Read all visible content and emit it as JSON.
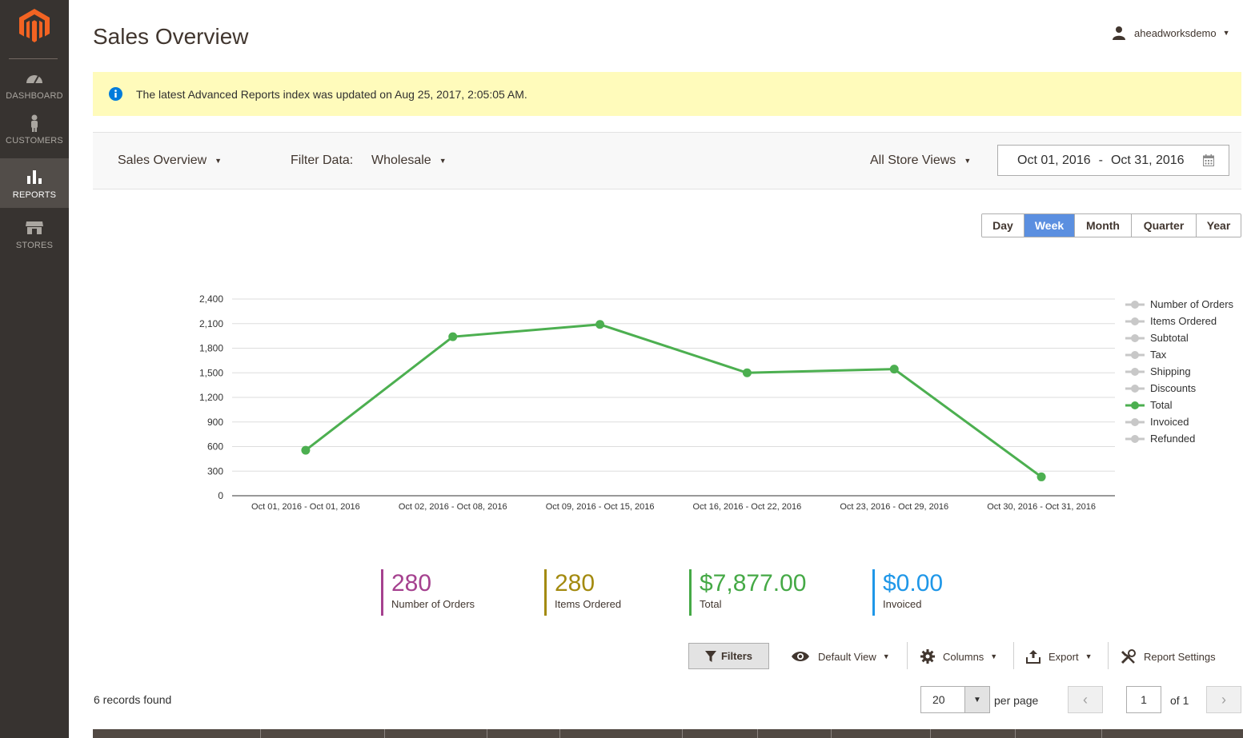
{
  "sidebar": {
    "logo": "magento-logo",
    "items": [
      {
        "label": "DASHBOARD",
        "icon": "dashboard-icon",
        "active": false
      },
      {
        "label": "CUSTOMERS",
        "icon": "customers-icon",
        "active": false
      },
      {
        "label": "REPORTS",
        "icon": "reports-icon",
        "active": true
      },
      {
        "label": "STORES",
        "icon": "stores-icon",
        "active": false
      }
    ]
  },
  "header": {
    "title": "Sales Overview",
    "user": "aheadworksdemo"
  },
  "notice": {
    "text": "The latest Advanced Reports index was updated on Aug 25, 2017, 2:05:05 AM."
  },
  "toolbar": {
    "report": "Sales Overview",
    "filter_label": "Filter Data:",
    "filter_value": "Wholesale",
    "store_view": "All Store Views",
    "date_from": "Oct 01, 2016",
    "date_sep": "-",
    "date_to": "Oct 31, 2016"
  },
  "periods": {
    "items": [
      "Day",
      "Week",
      "Month",
      "Quarter",
      "Year"
    ],
    "active": "Week"
  },
  "chart_data": {
    "type": "line",
    "categories": [
      "Oct 01, 2016 - Oct 01, 2016",
      "Oct 02, 2016 - Oct 08, 2016",
      "Oct 09, 2016 - Oct 15, 2016",
      "Oct 16, 2016 - Oct 22, 2016",
      "Oct 23, 2016 - Oct 29, 2016",
      "Oct 30, 2016 - Oct 31, 2016"
    ],
    "series": [
      {
        "name": "Total",
        "color": "#4caf50",
        "values": [
          555,
          1940,
          2090,
          1500,
          1545,
          230
        ]
      }
    ],
    "yticks": [
      "0",
      "300",
      "600",
      "900",
      "1,200",
      "1,500",
      "1,800",
      "2,100",
      "2,400"
    ],
    "ylim": [
      0,
      2400
    ],
    "grid": true,
    "legend_position": "right",
    "legend": [
      {
        "label": "Number of Orders",
        "active": false
      },
      {
        "label": "Items Ordered",
        "active": false
      },
      {
        "label": "Subtotal",
        "active": false
      },
      {
        "label": "Tax",
        "active": false
      },
      {
        "label": "Shipping",
        "active": false
      },
      {
        "label": "Discounts",
        "active": false
      },
      {
        "label": "Total",
        "active": true
      },
      {
        "label": "Invoiced",
        "active": false
      },
      {
        "label": "Refunded",
        "active": false
      }
    ]
  },
  "totals": [
    {
      "value": "280",
      "label": "Number of Orders",
      "color": "#a5418f"
    },
    {
      "value": "280",
      "label": "Items Ordered",
      "color": "#a38a0f"
    },
    {
      "value": "$7,877.00",
      "label": "Total",
      "color": "#45a946"
    },
    {
      "value": "$0.00",
      "label": "Invoiced",
      "color": "#1f97e8"
    }
  ],
  "grid_toolbar": {
    "filters": "Filters",
    "view": "Default View",
    "columns": "Columns",
    "export": "Export",
    "settings": "Report Settings"
  },
  "pagination": {
    "records": "6 records found",
    "per_page_value": "20",
    "per_page_label": "per page",
    "page": "1",
    "of": "of 1"
  }
}
